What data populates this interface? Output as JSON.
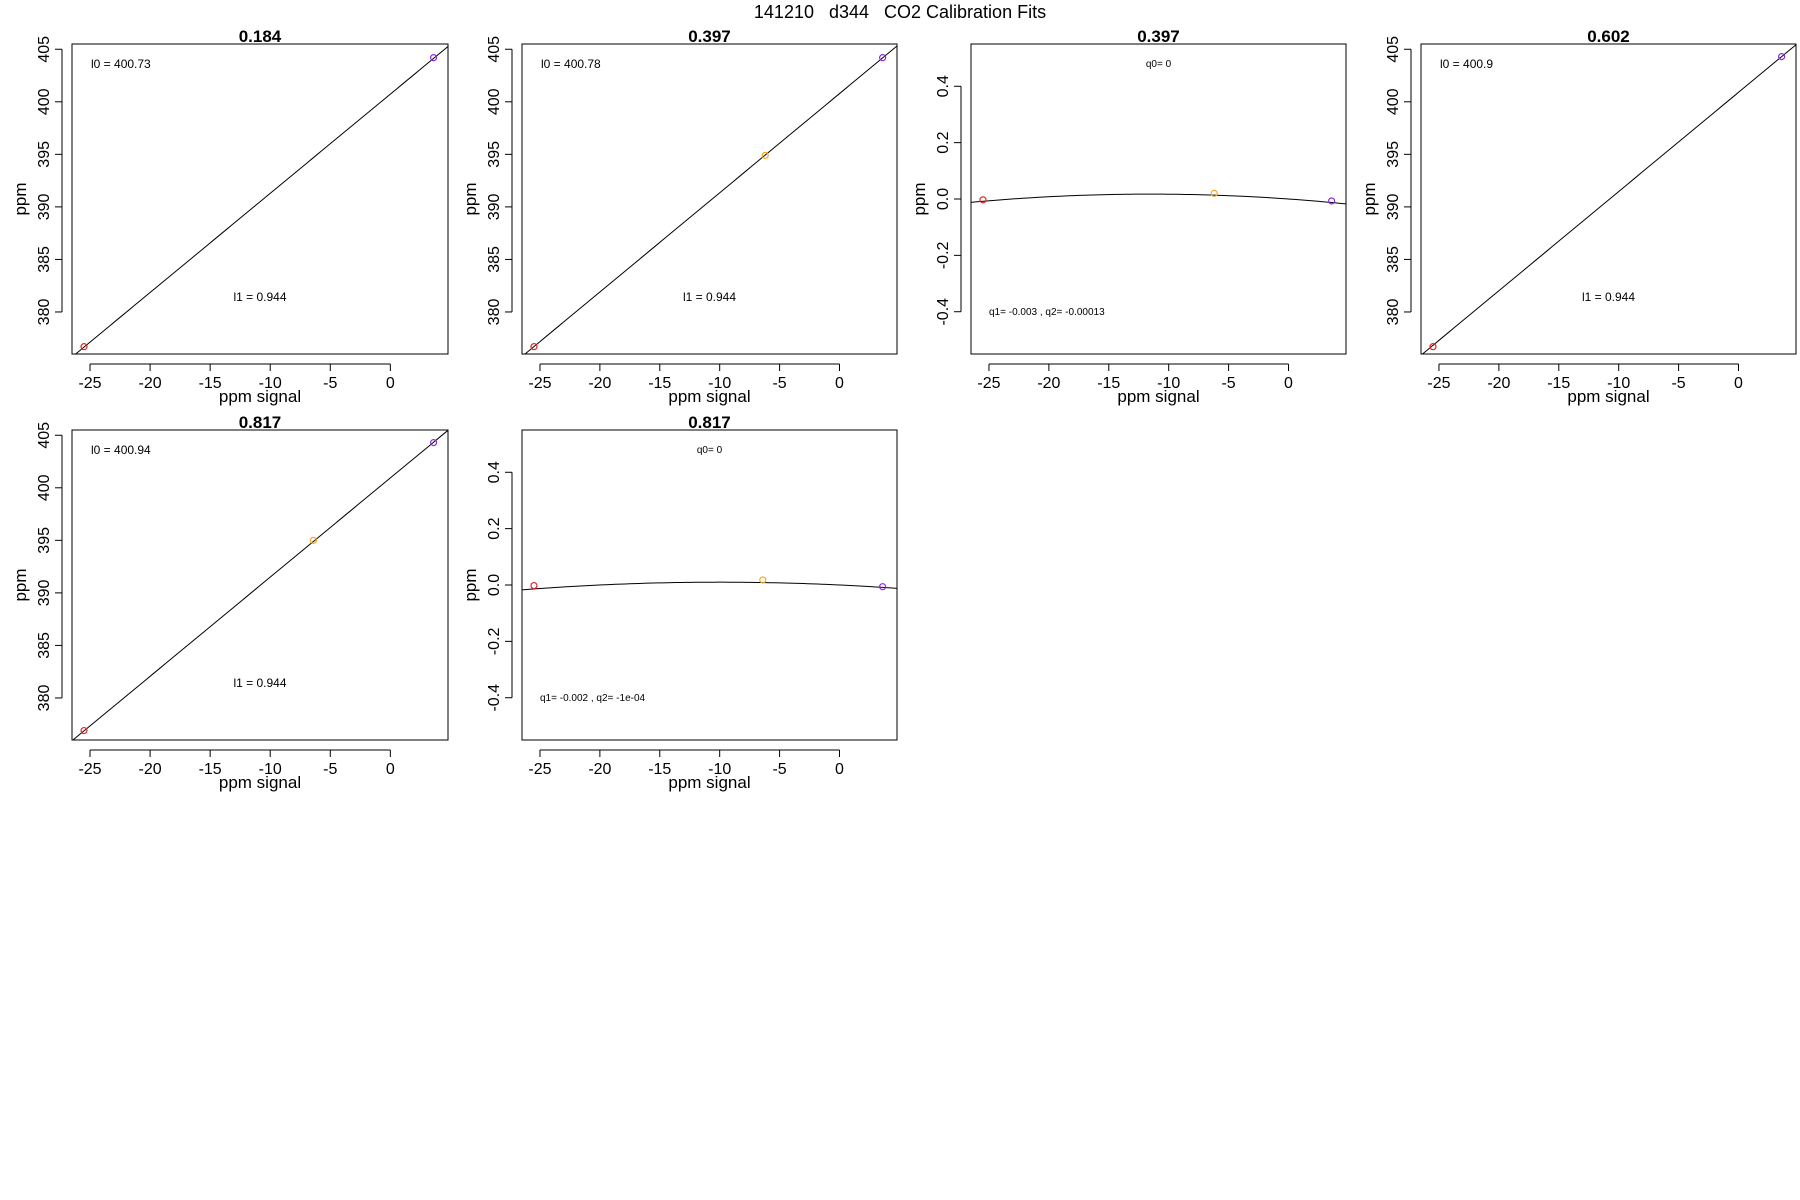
{
  "page": {
    "title": "141210   d344   CO2 Calibration Fits"
  },
  "colors": {
    "axis": "#000000",
    "fit_line": "#000000",
    "point_low": "#e0272b",
    "point_mid": "#f5a623",
    "point_high": "#8a2be2"
  },
  "chart_data": [
    {
      "type": "scatter",
      "title": "0.184",
      "xlabel": "ppm signal",
      "ylabel": "ppm",
      "xlim": [
        -26.5,
        4.8
      ],
      "ylim": [
        376.0,
        405.5
      ],
      "xticks": [
        "-25",
        "-20",
        "-15",
        "-10",
        "-5",
        "0"
      ],
      "xtick_values": [
        -25,
        -20,
        -15,
        -10,
        -5,
        0
      ],
      "yticks": [
        "380",
        "385",
        "390",
        "395",
        "400",
        "405"
      ],
      "ytick_values": [
        380,
        385,
        390,
        395,
        400,
        405
      ],
      "points": [
        {
          "x": -25.5,
          "y": 376.7,
          "color": "point_low"
        },
        {
          "x": 3.6,
          "y": 404.2,
          "color": "point_high"
        }
      ],
      "fit": {
        "kind": "linear",
        "intercept": 400.73,
        "slope": 0.944
      },
      "annotations": [
        {
          "text": "l0 =  400.73",
          "pos": "top-left"
        },
        {
          "text": "l1 =  0.944",
          "pos": "center-bottom"
        }
      ]
    },
    {
      "type": "scatter",
      "title": "0.397",
      "xlabel": "ppm signal",
      "ylabel": "ppm",
      "xlim": [
        -26.5,
        4.8
      ],
      "ylim": [
        376.0,
        405.5
      ],
      "xticks": [
        "-25",
        "-20",
        "-15",
        "-10",
        "-5",
        "0"
      ],
      "xtick_values": [
        -25,
        -20,
        -15,
        -10,
        -5,
        0
      ],
      "yticks": [
        "380",
        "385",
        "390",
        "395",
        "400",
        "405"
      ],
      "ytick_values": [
        380,
        385,
        390,
        395,
        400,
        405
      ],
      "points": [
        {
          "x": -25.5,
          "y": 376.7,
          "color": "point_low"
        },
        {
          "x": -6.2,
          "y": 394.9,
          "color": "point_mid"
        },
        {
          "x": 3.6,
          "y": 404.2,
          "color": "point_high"
        }
      ],
      "fit": {
        "kind": "linear",
        "intercept": 400.78,
        "slope": 0.944
      },
      "annotations": [
        {
          "text": "l0 =  400.78",
          "pos": "top-left"
        },
        {
          "text": "l1 =  0.944",
          "pos": "center-bottom"
        }
      ]
    },
    {
      "type": "scatter",
      "title": "0.397",
      "xlabel": "ppm signal",
      "ylabel": "ppm",
      "xlim": [
        -26.5,
        4.8
      ],
      "ylim": [
        -0.55,
        0.55
      ],
      "xticks": [
        "-25",
        "-20",
        "-15",
        "-10",
        "-5",
        "0"
      ],
      "xtick_values": [
        -25,
        -20,
        -15,
        -10,
        -5,
        0
      ],
      "yticks": [
        "-0.4",
        "-0.2",
        "0.0",
        "0.2",
        "0.4"
      ],
      "ytick_values": [
        -0.4,
        -0.2,
        0.0,
        0.2,
        0.4
      ],
      "points": [
        {
          "x": -25.5,
          "y": -0.003,
          "color": "point_low"
        },
        {
          "x": -6.2,
          "y": 0.02,
          "color": "point_mid"
        },
        {
          "x": 3.6,
          "y": -0.007,
          "color": "point_high"
        }
      ],
      "fit": {
        "kind": "quadratic",
        "q0": 0,
        "q1": -0.003,
        "q2": -0.00013
      },
      "annotations": [
        {
          "text": "q0= 0",
          "pos": "top-center"
        },
        {
          "text": "q1= -0.003 , q2= -0.00013",
          "pos": "bottom-left"
        }
      ]
    },
    {
      "type": "scatter",
      "title": "0.602",
      "xlabel": "ppm signal",
      "ylabel": "ppm",
      "xlim": [
        -26.5,
        4.8
      ],
      "ylim": [
        376.0,
        405.5
      ],
      "xticks": [
        "-25",
        "-20",
        "-15",
        "-10",
        "-5",
        "0"
      ],
      "xtick_values": [
        -25,
        -20,
        -15,
        -10,
        -5,
        0
      ],
      "yticks": [
        "380",
        "385",
        "390",
        "395",
        "400",
        "405"
      ],
      "ytick_values": [
        380,
        385,
        390,
        395,
        400,
        405
      ],
      "points": [
        {
          "x": -25.5,
          "y": 376.7,
          "color": "point_low"
        },
        {
          "x": 3.6,
          "y": 404.3,
          "color": "point_high"
        }
      ],
      "fit": {
        "kind": "linear",
        "intercept": 400.9,
        "slope": 0.944
      },
      "annotations": [
        {
          "text": "l0 =  400.9",
          "pos": "top-left"
        },
        {
          "text": "l1 =  0.944",
          "pos": "center-bottom"
        }
      ]
    },
    {
      "type": "scatter",
      "title": "0.817",
      "xlabel": "ppm signal",
      "ylabel": "ppm",
      "xlim": [
        -26.5,
        4.8
      ],
      "ylim": [
        376.0,
        405.5
      ],
      "xticks": [
        "-25",
        "-20",
        "-15",
        "-10",
        "-5",
        "0"
      ],
      "xtick_values": [
        -25,
        -20,
        -15,
        -10,
        -5,
        0
      ],
      "yticks": [
        "380",
        "385",
        "390",
        "395",
        "400",
        "405"
      ],
      "ytick_values": [
        380,
        385,
        390,
        395,
        400,
        405
      ],
      "points": [
        {
          "x": -25.5,
          "y": 376.9,
          "color": "point_low"
        },
        {
          "x": -6.4,
          "y": 395.0,
          "color": "point_mid"
        },
        {
          "x": 3.6,
          "y": 404.3,
          "color": "point_high"
        }
      ],
      "fit": {
        "kind": "linear",
        "intercept": 400.94,
        "slope": 0.944
      },
      "annotations": [
        {
          "text": "l0 =  400.94",
          "pos": "top-left"
        },
        {
          "text": "l1 =  0.944",
          "pos": "center-bottom"
        }
      ]
    },
    {
      "type": "scatter",
      "title": "0.817",
      "xlabel": "ppm signal",
      "ylabel": "ppm",
      "xlim": [
        -26.5,
        4.8
      ],
      "ylim": [
        -0.55,
        0.55
      ],
      "xticks": [
        "-25",
        "-20",
        "-15",
        "-10",
        "-5",
        "0"
      ],
      "xtick_values": [
        -25,
        -20,
        -15,
        -10,
        -5,
        0
      ],
      "yticks": [
        "-0.4",
        "-0.2",
        "0.0",
        "0.2",
        "0.4"
      ],
      "ytick_values": [
        -0.4,
        -0.2,
        0.0,
        0.2,
        0.4
      ],
      "points": [
        {
          "x": -25.5,
          "y": -0.002,
          "color": "point_low"
        },
        {
          "x": -6.4,
          "y": 0.018,
          "color": "point_mid"
        },
        {
          "x": 3.6,
          "y": -0.006,
          "color": "point_high"
        }
      ],
      "fit": {
        "kind": "quadratic",
        "q0": 0,
        "q1": -0.002,
        "q2": -0.0001
      },
      "annotations": [
        {
          "text": "q0= 0",
          "pos": "top-center"
        },
        {
          "text": "q1= -0.002 , q2= -1e-04",
          "pos": "bottom-left"
        }
      ]
    }
  ]
}
